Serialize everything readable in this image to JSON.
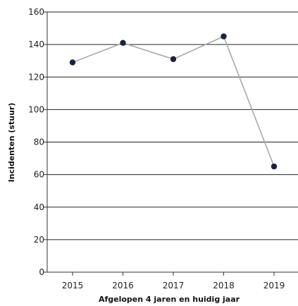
{
  "chart_data": {
    "type": "line",
    "title": "",
    "xlabel": "Afgelopen 4 jaren en huidig jaar",
    "ylabel": "Incidenten (stuur)",
    "categories": [
      "2015",
      "2016",
      "2017",
      "2018",
      "2019"
    ],
    "series": [
      {
        "name": "",
        "values": [
          129,
          141,
          131,
          145,
          65
        ]
      }
    ],
    "ylim": [
      0,
      160
    ],
    "yticks": [
      0,
      20,
      40,
      60,
      80,
      100,
      120,
      140,
      160
    ],
    "grid": true,
    "legend": "none",
    "colors": {
      "line": "#a9a9a9",
      "marker": "#1a2340",
      "grid": "#222222",
      "axis": "#333333"
    }
  }
}
